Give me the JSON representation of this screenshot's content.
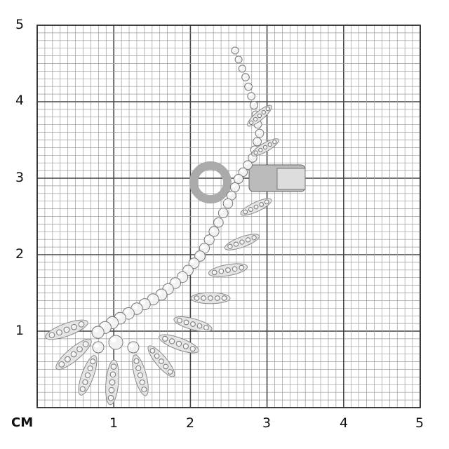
{
  "ruler": {
    "unit_label": "CM",
    "x_ticks": [
      "1",
      "2",
      "3",
      "4",
      "5"
    ],
    "y_ticks": [
      "1",
      "2",
      "3",
      "4",
      "5"
    ],
    "range_cm": [
      0,
      5
    ],
    "minor_divisions_per_cm": 10,
    "grid_color": "#444444",
    "minor_grid_color": "#9a9a9a"
  },
  "product": {
    "type": "diamond ear cuff",
    "metal_color": "#c8c8c8"
  }
}
